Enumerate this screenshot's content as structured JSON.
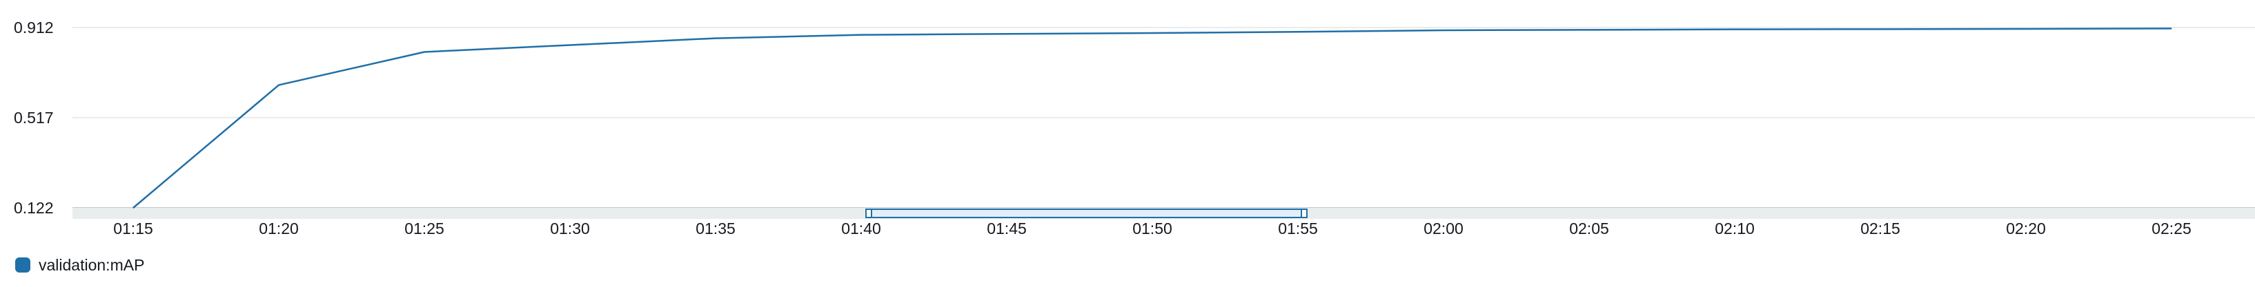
{
  "colors": {
    "series": "#1f6fa8",
    "grid": "#e9ebed",
    "axis": "#c6c6cd",
    "brush_fill": "#e3eef8",
    "brush_track": "#eaeded"
  },
  "chart_data": {
    "type": "line",
    "title": "",
    "xlabel": "",
    "ylabel": "",
    "x_tick_labels": [
      "01:15",
      "01:20",
      "01:25",
      "01:30",
      "01:35",
      "01:40",
      "01:45",
      "01:50",
      "01:55",
      "02:00",
      "02:05",
      "02:10",
      "02:15",
      "02:20",
      "02:25"
    ],
    "y_tick_labels": [
      "0.912",
      "0.517",
      "0.122"
    ],
    "ylim": [
      0.122,
      0.912
    ],
    "xlim": [
      "01:15",
      "02:25"
    ],
    "grid": true,
    "legend_position": "bottom-left",
    "series": [
      {
        "name": "validation:mAP",
        "x": [
          "01:15",
          "01:20",
          "01:25",
          "01:30",
          "01:35",
          "01:40",
          "01:45",
          "01:50",
          "01:55",
          "02:00",
          "02:05",
          "02:10",
          "02:15",
          "02:20",
          "02:25"
        ],
        "values": [
          0.122,
          0.66,
          0.805,
          0.835,
          0.865,
          0.88,
          0.884,
          0.888,
          0.893,
          0.9,
          0.902,
          0.904,
          0.905,
          0.906,
          0.908
        ]
      }
    ],
    "brush_range": [
      "01:40",
      "01:55"
    ]
  }
}
